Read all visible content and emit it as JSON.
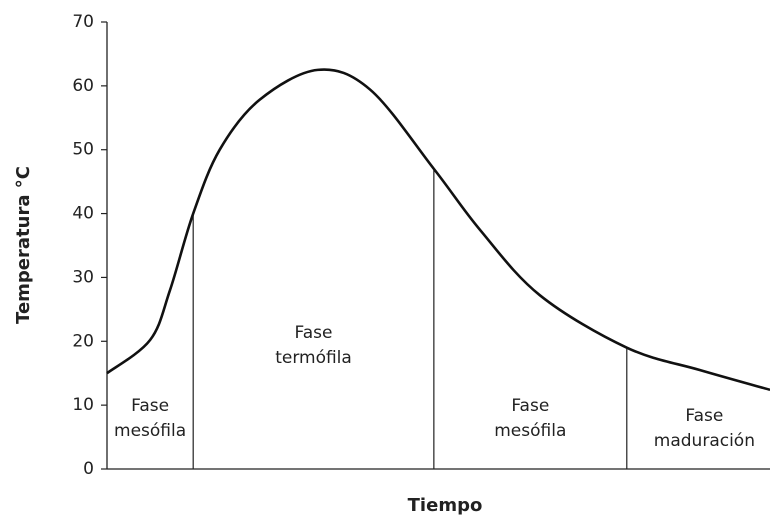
{
  "chart_data": {
    "type": "line",
    "xlabel": "Tiempo",
    "ylabel": "Temperatura °C",
    "ylim": [
      0,
      70
    ],
    "yticks": [
      0,
      10,
      20,
      30,
      40,
      50,
      60,
      70
    ],
    "xlim": [
      0,
      100
    ],
    "color": "#111111",
    "x": [
      0,
      6.5,
      9.5,
      13,
      17,
      23,
      31.8,
      39.7,
      49.3,
      56.3,
      65.3,
      78.4,
      89.4,
      100
    ],
    "values": [
      15,
      20.2,
      28,
      40,
      50,
      57.8,
      62.5,
      59.4,
      47,
      37.4,
      27.2,
      19,
      15.5,
      12.4
    ],
    "phase_boundaries": [
      13,
      49.3,
      78.4
    ],
    "phases": [
      {
        "label_lines": [
          "Fase",
          "mesófila"
        ]
      },
      {
        "label_lines": [
          "Fase",
          "termófila"
        ]
      },
      {
        "label_lines": [
          "Fase",
          "mesófila"
        ]
      },
      {
        "label_lines": [
          "Fase",
          "maduración"
        ]
      }
    ]
  }
}
